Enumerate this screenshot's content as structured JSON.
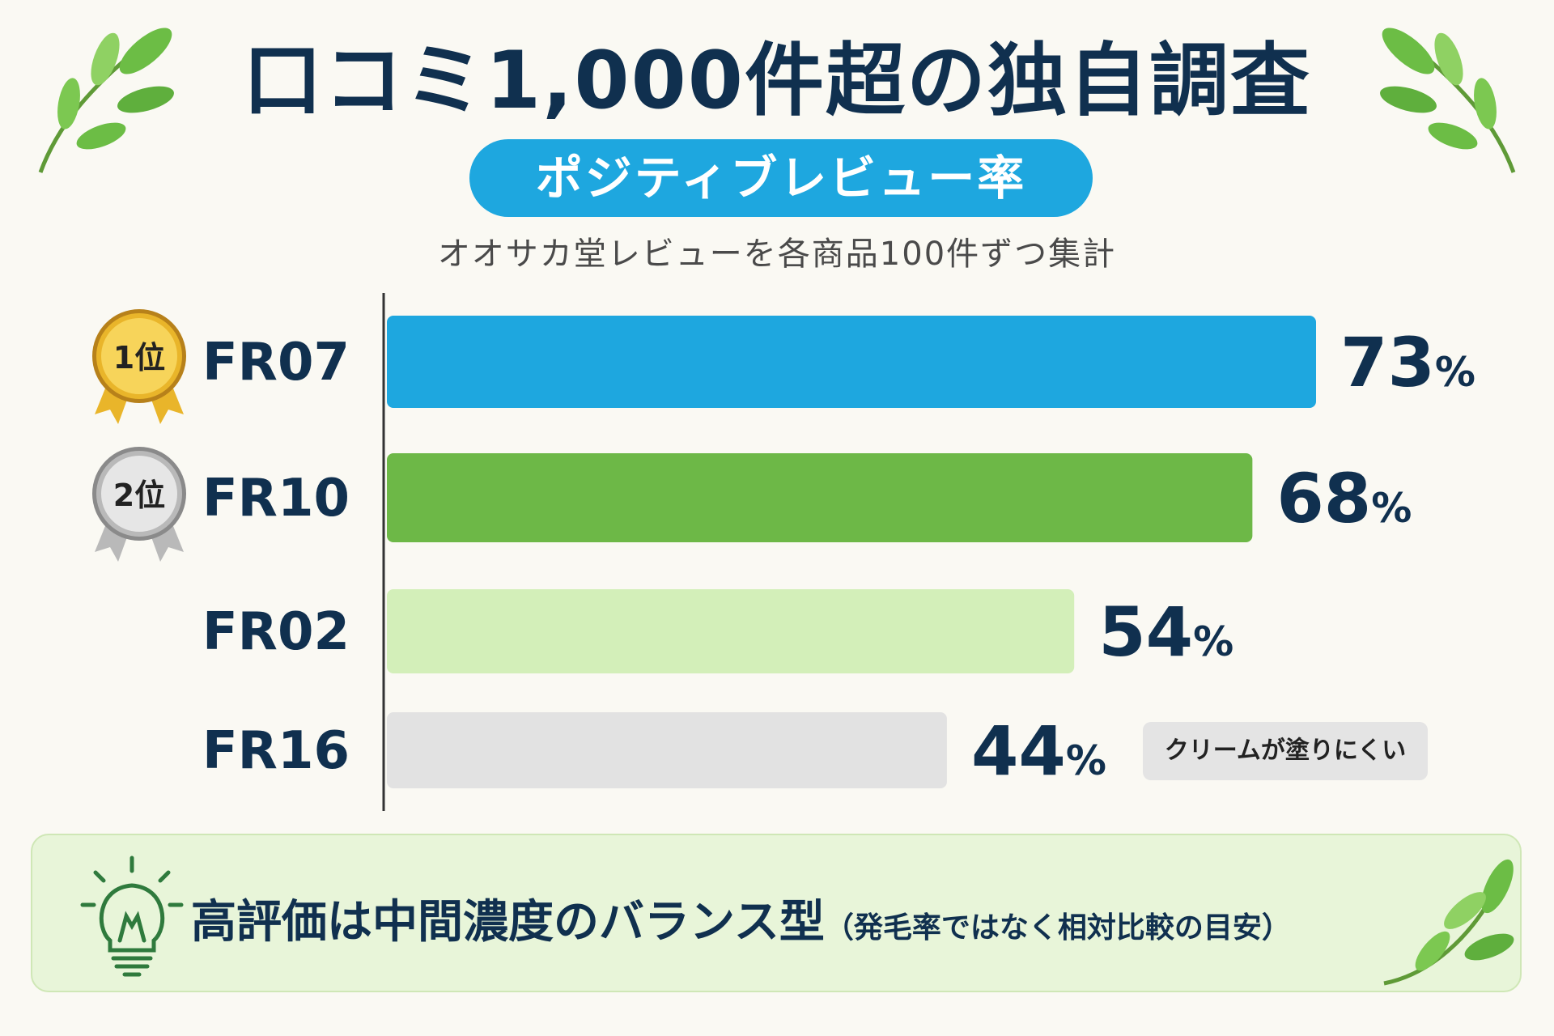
{
  "header": {
    "title": "口コミ1,000件超の独自調査",
    "badge": "ポジティブレビュー率",
    "subtitle": "オオサカ堂レビューを各商品100件ずつ集計"
  },
  "ranks": [
    {
      "label": "1位",
      "item": "FR07",
      "color": "#e9b52a"
    },
    {
      "label": "2位",
      "item": "FR10",
      "color": "#b9b9b9"
    }
  ],
  "chart_data": {
    "type": "bar",
    "orientation": "horizontal",
    "categories": [
      "FR07",
      "FR10",
      "FR02",
      "FR16"
    ],
    "values": [
      73,
      68,
      54,
      44
    ],
    "value_labels": [
      "73",
      "68",
      "54",
      "44"
    ],
    "unit": "%",
    "colors": [
      "#1ea7df",
      "#6db847",
      "#d3efb9",
      "#e2e2e2"
    ],
    "xlim": [
      0,
      73
    ]
  },
  "callout": {
    "text": "クリームが塗りにくい",
    "attached_to": "FR16"
  },
  "note": {
    "main": "高評価は中間濃度のバランス型",
    "sub": "（発毛率ではなく相対比較の目安）"
  },
  "icons": [
    "leaf-icon",
    "medal-icon",
    "lightbulb-icon"
  ]
}
